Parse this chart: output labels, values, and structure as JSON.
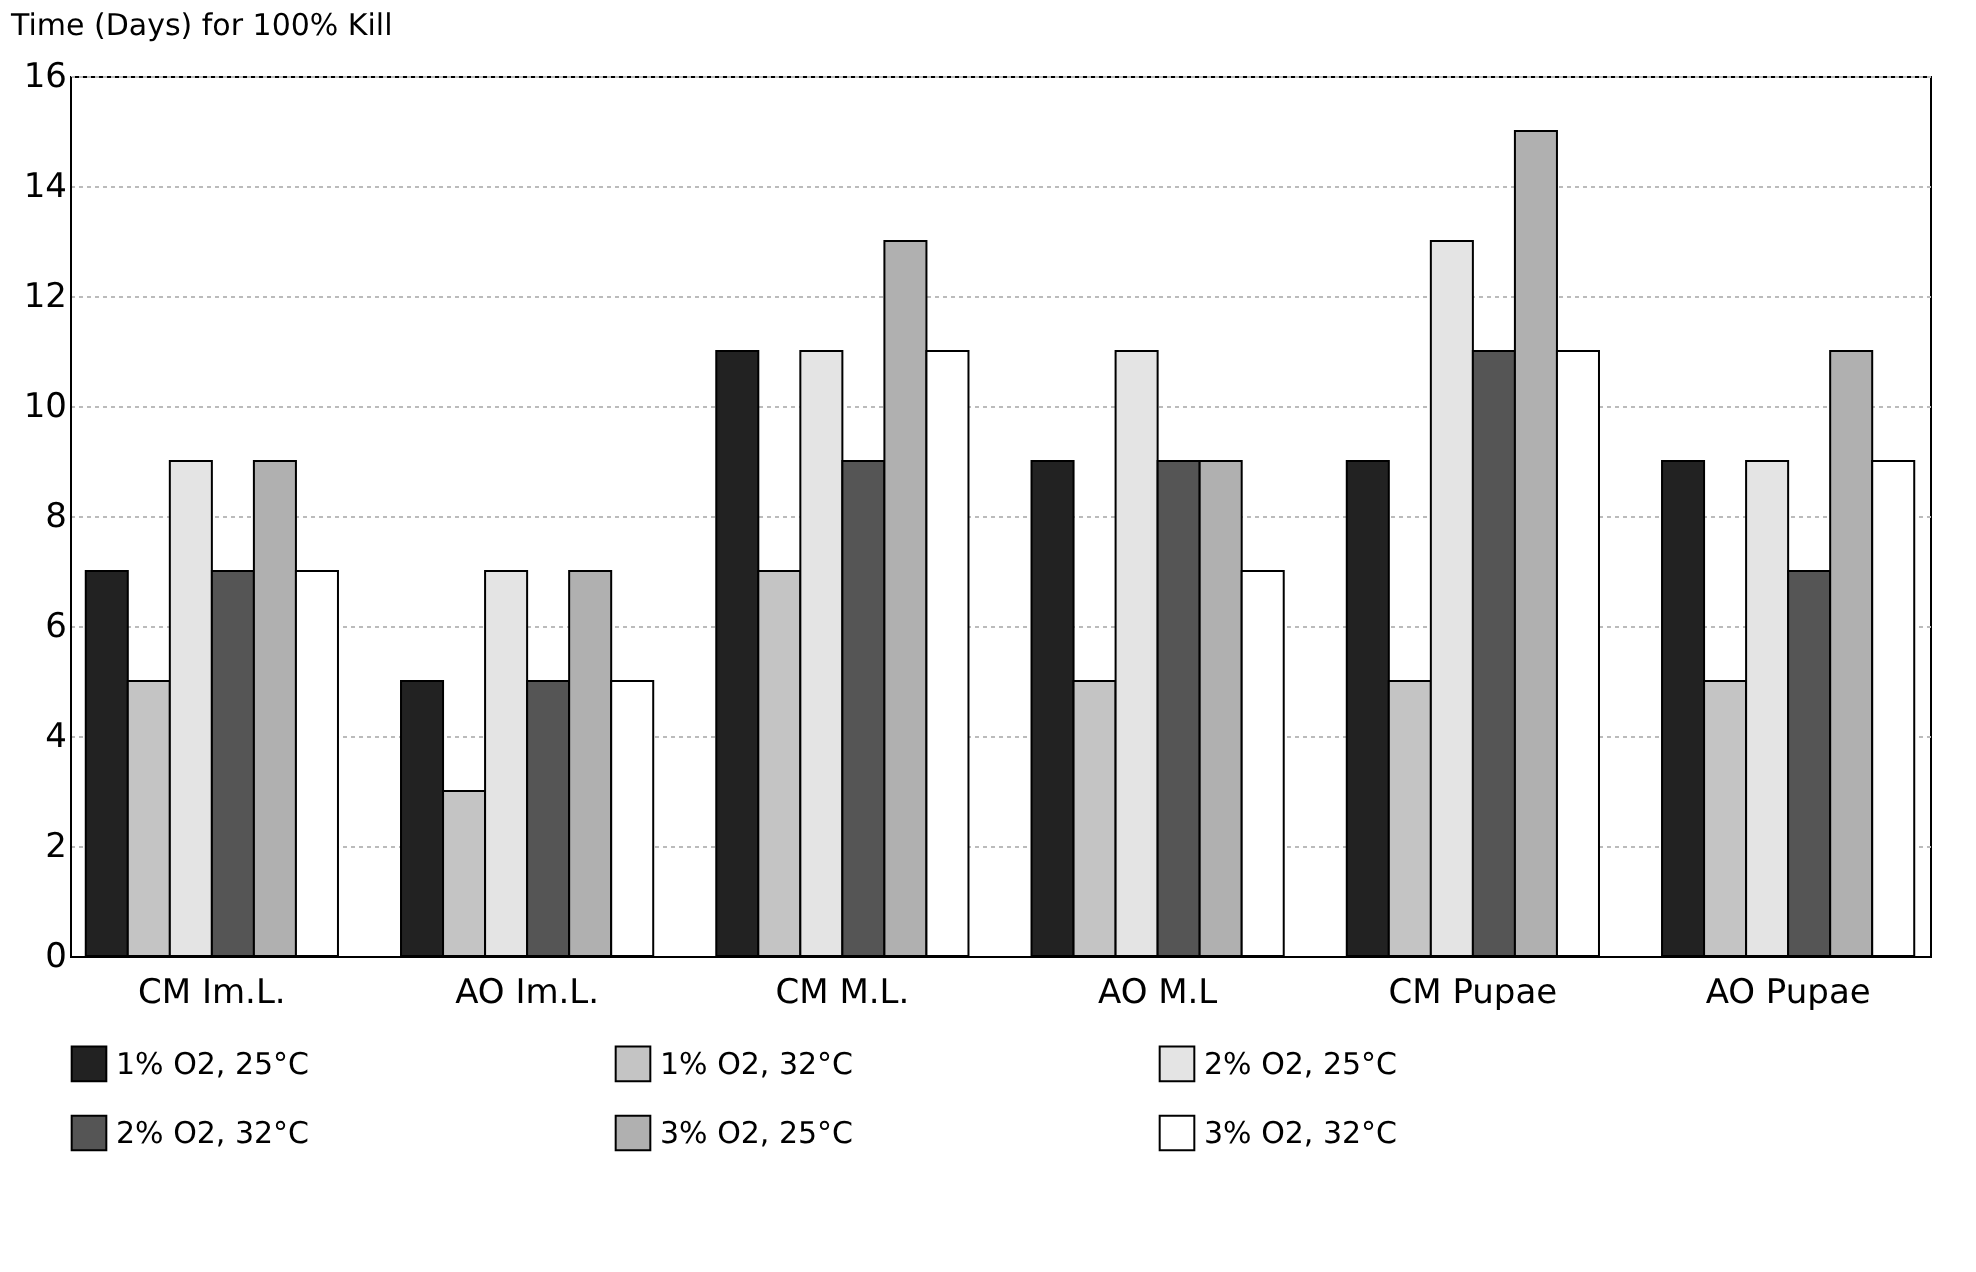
{
  "chart_data": {
    "type": "bar",
    "ylabel": "Time (Days) for 100% Kill",
    "categories": [
      "CM Im.L.",
      "AO Im.L.",
      "CM M.L.",
      "AO M.L",
      "CM Pupae",
      "AO Pupae"
    ],
    "series": [
      {
        "name": "1% O2, 25°C",
        "color": "#222222",
        "values": [
          7,
          5,
          11,
          9,
          9,
          9
        ]
      },
      {
        "name": "1% O2, 32°C",
        "color": "#c4c4c4",
        "values": [
          5,
          3,
          7,
          5,
          5,
          5
        ]
      },
      {
        "name": "2% O2, 25°C",
        "color": "#e4e4e4",
        "values": [
          9,
          7,
          11,
          11,
          13,
          9
        ]
      },
      {
        "name": "2% O2, 32°C",
        "color": "#555555",
        "values": [
          7,
          5,
          9,
          9,
          11,
          7
        ]
      },
      {
        "name": "3% O2, 25°C",
        "color": "#b0b0b0",
        "values": [
          9,
          7,
          13,
          9,
          15,
          11
        ]
      },
      {
        "name": "3% O2, 32°C",
        "color": "#ffffff",
        "values": [
          7,
          5,
          11,
          7,
          11,
          9
        ]
      }
    ],
    "ylim": [
      0,
      16
    ],
    "yticks": [
      0,
      2,
      4,
      6,
      8,
      10,
      12,
      14,
      16
    ],
    "grid": "y",
    "legend": "bottom"
  }
}
